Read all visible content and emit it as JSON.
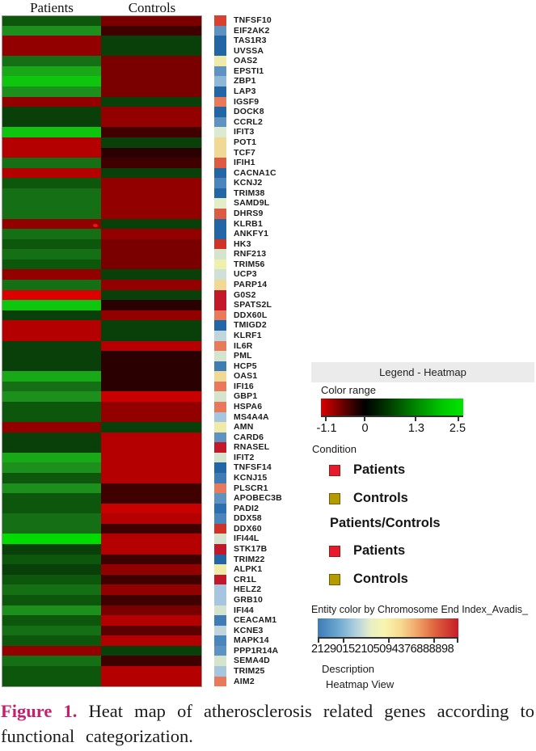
{
  "figure": {
    "columns": [
      "Patients",
      "Controls"
    ],
    "caption": {
      "label": "Figure 1.",
      "label_color": "#c51f6d",
      "text": "Heat map of atherosclerosis related genes according to functional categorization."
    }
  },
  "heatmap": {
    "rows": [
      {
        "g": "TNFSF10",
        "p": "#0d570d",
        "c": "#7a0000",
        "k": "#d8402f"
      },
      {
        "g": "EIF2AK2",
        "p": "#1d8f1d",
        "c": "#400000",
        "k": "#5e93c1"
      },
      {
        "g": "TAS1R3",
        "p": "#930000",
        "c": "#093f09",
        "k": "#2266a5"
      },
      {
        "g": "UVSSA",
        "p": "#930000",
        "c": "#093f09",
        "k": "#2266a5"
      },
      {
        "g": "OAS2",
        "p": "#157015",
        "c": "#7a0000",
        "k": "#f0eaa8"
      },
      {
        "g": "EPSTI1",
        "p": "#18a818",
        "c": "#7a0000",
        "k": "#5e93c1"
      },
      {
        "g": "ZBP1",
        "p": "#0fc60f",
        "c": "#7a0000",
        "k": "#8fb8d8"
      },
      {
        "g": "LAP3",
        "p": "#1d8f1d",
        "c": "#7a0000",
        "k": "#2266a5"
      },
      {
        "g": "IGSF9",
        "p": "#930000",
        "c": "#093f09",
        "k": "#e8795a"
      },
      {
        "g": "DOCK8",
        "p": "#093f09",
        "c": "#930000",
        "k": "#2266a5"
      },
      {
        "g": "CCRL2",
        "p": "#093f09",
        "c": "#930000",
        "k": "#5e93c1"
      },
      {
        "g": "IFIT3",
        "p": "#0fc60f",
        "c": "#400000",
        "k": "#dcead0"
      },
      {
        "g": "POT1",
        "p": "#b40000",
        "c": "#093f09",
        "k": "#efd995"
      },
      {
        "g": "TCF7",
        "p": "#b40000",
        "c": "#2b0000",
        "k": "#efd995"
      },
      {
        "g": "IFIH1",
        "p": "#157015",
        "c": "#400000",
        "k": "#dd5b42"
      },
      {
        "g": "CACNA1C",
        "p": "#b40000",
        "c": "#093f09",
        "k": "#2266a5"
      },
      {
        "g": "KCNJ2",
        "p": "#0d570d",
        "c": "#930000",
        "k": "#4a86bb"
      },
      {
        "g": "TRIM38",
        "p": "#157015",
        "c": "#930000",
        "k": "#2266a5"
      },
      {
        "g": "SAMD9L",
        "p": "#157015",
        "c": "#930000",
        "k": "#e3edc8"
      },
      {
        "g": "DHRS9",
        "p": "#157015",
        "c": "#930000",
        "k": "#dd5b42"
      },
      {
        "g": "KLRB1",
        "p": "#930000",
        "c": "#093f09",
        "k": "#2266a5"
      },
      {
        "g": "ANKFY1",
        "p": "#157015",
        "c": "#930000",
        "k": "#2266a5"
      },
      {
        "g": "HK3",
        "p": "#0d570d",
        "c": "#7a0000",
        "k": "#cf3227"
      },
      {
        "g": "RNF213",
        "p": "#157015",
        "c": "#7a0000",
        "k": "#d5e5cd"
      },
      {
        "g": "TRIM56",
        "p": "#0d570d",
        "c": "#7a0000",
        "k": "#eff0b0"
      },
      {
        "g": "UCP3",
        "p": "#930000",
        "c": "#093f09",
        "k": "#cfe0d6"
      },
      {
        "g": "PARP14",
        "p": "#157015",
        "c": "#930000",
        "k": "#efd995"
      },
      {
        "g": "G0S2",
        "p": "#dd0000",
        "c": "#093f09",
        "k": "#c3172a"
      },
      {
        "g": "SPATS2L",
        "p": "#0fc60f",
        "c": "#2b0000",
        "k": "#c3172a"
      },
      {
        "g": "DDX60L",
        "p": "#093f09",
        "c": "#930000",
        "k": "#e8795a"
      },
      {
        "g": "TMIGD2",
        "p": "#b40000",
        "c": "#093f09",
        "k": "#2266a5"
      },
      {
        "g": "KLRF1",
        "p": "#b40000",
        "c": "#093f09",
        "k": "#c2d4dc"
      },
      {
        "g": "IL6R",
        "p": "#093f09",
        "c": "#b40000",
        "k": "#e8795a"
      },
      {
        "g": "PML",
        "p": "#093f09",
        "c": "#2b0000",
        "k": "#d5e5cd"
      },
      {
        "g": "HCP5",
        "p": "#093f09",
        "c": "#2b0000",
        "k": "#3f7cb5"
      },
      {
        "g": "OAS1",
        "p": "#18a818",
        "c": "#2b0000",
        "k": "#efd995"
      },
      {
        "g": "IFI16",
        "p": "#157015",
        "c": "#2b0000",
        "k": "#e8795a"
      },
      {
        "g": "GBP1",
        "p": "#1d8f1d",
        "c": "#c80000",
        "k": "#d5e5cd"
      },
      {
        "g": "HSPA6",
        "p": "#0d570d",
        "c": "#930000",
        "k": "#e8795a"
      },
      {
        "g": "MS4A4A",
        "p": "#0d570d",
        "c": "#930000",
        "k": "#a5c6de"
      },
      {
        "g": "AMN",
        "p": "#930000",
        "c": "#093f09",
        "k": "#f0eaa8"
      },
      {
        "g": "CARD6",
        "p": "#093f09",
        "c": "#b40000",
        "k": "#5e93c1"
      },
      {
        "g": "RNASEL",
        "p": "#093f09",
        "c": "#b40000",
        "k": "#c3172a"
      },
      {
        "g": "IFIT2",
        "p": "#18a818",
        "c": "#b40000",
        "k": "#d5e5cd"
      },
      {
        "g": "TNFSF14",
        "p": "#1d8f1d",
        "c": "#b40000",
        "k": "#2266a5"
      },
      {
        "g": "KCNJ15",
        "p": "#0d570d",
        "c": "#b40000",
        "k": "#3f7cb5"
      },
      {
        "g": "PLSCR1",
        "p": "#1d8f1d",
        "c": "#400000",
        "k": "#e8795a"
      },
      {
        "g": "APOBEC3B",
        "p": "#0d570d",
        "c": "#400000",
        "k": "#5e93c1"
      },
      {
        "g": "PADI2",
        "p": "#0d570d",
        "c": "#c80000",
        "k": "#2e6fae"
      },
      {
        "g": "DDX58",
        "p": "#157015",
        "c": "#b40000",
        "k": "#4a86bb"
      },
      {
        "g": "DDX60",
        "p": "#157015",
        "c": "#400000",
        "k": "#cf3227"
      },
      {
        "g": "IFI44L",
        "p": "#00dc00",
        "c": "#b40000",
        "k": "#d5e5cd"
      },
      {
        "g": "STK17B",
        "p": "#093f09",
        "c": "#b40000",
        "k": "#c3172a"
      },
      {
        "g": "TRIM22",
        "p": "#0d570d",
        "c": "#400000",
        "k": "#2266a5"
      },
      {
        "g": "ALPK1",
        "p": "#093f09",
        "c": "#930000",
        "k": "#f0eaa8"
      },
      {
        "g": "CR1L",
        "p": "#0d570d",
        "c": "#400000",
        "k": "#c3172a"
      },
      {
        "g": "HELZ2",
        "p": "#157015",
        "c": "#930000",
        "k": "#a5c6de"
      },
      {
        "g": "GRB10",
        "p": "#0d570d",
        "c": "#400000",
        "k": "#a5c6de"
      },
      {
        "g": "IFI44",
        "p": "#1d8f1d",
        "c": "#7a0000",
        "k": "#d5e5cd"
      },
      {
        "g": "CEACAM1",
        "p": "#0d570d",
        "c": "#b40000",
        "k": "#3f7cb5"
      },
      {
        "g": "KCNE3",
        "p": "#157015",
        "c": "#5c0000",
        "k": "#c2d4dc"
      },
      {
        "g": "MAPK14",
        "p": "#0d570d",
        "c": "#b40000",
        "k": "#4a86bb"
      },
      {
        "g": "PPP1R14A",
        "p": "#930000",
        "c": "#093f09",
        "k": "#5e93c1"
      },
      {
        "g": "SEMA4D",
        "p": "#157015",
        "c": "#400000",
        "k": "#d5e5cd"
      },
      {
        "g": "TRIM25",
        "p": "#0d570d",
        "c": "#b40000",
        "k": "#a5c6de"
      },
      {
        "g": "AIM2",
        "p": "#0d570d",
        "c": "#b40000",
        "k": "#e8795a"
      }
    ]
  },
  "legend": {
    "title": "Legend - Heatmap",
    "color_range": {
      "label": "Color range",
      "ticks": [
        "-1.1",
        "0",
        "1.3",
        "2.5"
      ],
      "gradient_ends": [
        "#dd0000",
        "#000000",
        "#00e400"
      ]
    },
    "condition": {
      "label": "Condition",
      "items": [
        {
          "label": "Patients",
          "color": "#e8192c"
        },
        {
          "label": "Controls",
          "color": "#b39b00"
        }
      ]
    },
    "ratio": {
      "label": "Patients/Controls",
      "items": [
        {
          "label": "Patients",
          "color": "#e8192c"
        },
        {
          "label": "Controls",
          "color": "#b39b00"
        }
      ]
    },
    "entity": {
      "label": "Entity color by Chromosome End Index_Avadis_",
      "tick_text": "21290152105094376888898"
    },
    "description_label": "Description",
    "view_label": "Heatmap View"
  },
  "chart_data": {
    "type": "heatmap",
    "title": "Heat map of atherosclerosis related genes according to functional categorization",
    "categories": [
      "TNFSF10",
      "EIF2AK2",
      "TAS1R3",
      "UVSSA",
      "OAS2",
      "EPSTI1",
      "ZBP1",
      "LAP3",
      "IGSF9",
      "DOCK8",
      "CCRL2",
      "IFIT3",
      "POT1",
      "TCF7",
      "IFIH1",
      "CACNA1C",
      "KCNJ2",
      "TRIM38",
      "SAMD9L",
      "DHRS9",
      "KLRB1",
      "ANKFY1",
      "HK3",
      "RNF213",
      "TRIM56",
      "UCP3",
      "PARP14",
      "G0S2",
      "SPATS2L",
      "DDX60L",
      "TMIGD2",
      "KLRF1",
      "IL6R",
      "PML",
      "HCP5",
      "OAS1",
      "IFI16",
      "GBP1",
      "HSPA6",
      "MS4A4A",
      "AMN",
      "CARD6",
      "RNASEL",
      "IFIT2",
      "TNFSF14",
      "KCNJ15",
      "PLSCR1",
      "APOBEC3B",
      "PADI2",
      "DDX58",
      "DDX60",
      "IFI44L",
      "STK17B",
      "TRIM22",
      "ALPK1",
      "CR1L",
      "HELZ2",
      "GRB10",
      "IFI44",
      "CEACAM1",
      "KCNE3",
      "MAPK14",
      "PPP1R14A",
      "SEMA4D",
      "TRIM25",
      "AIM2"
    ],
    "series": [
      {
        "name": "Patients",
        "values": [
          1.0,
          1.6,
          -0.75,
          -0.75,
          1.3,
          1.9,
          2.2,
          1.6,
          -0.75,
          0.7,
          0.7,
          2.2,
          -0.9,
          -0.9,
          1.3,
          -0.9,
          1.0,
          1.3,
          1.3,
          1.3,
          -0.75,
          1.3,
          1.0,
          1.3,
          1.0,
          -0.75,
          1.3,
          -1.1,
          2.2,
          0.7,
          -0.9,
          -0.9,
          0.7,
          0.7,
          0.7,
          1.9,
          1.3,
          1.6,
          1.0,
          1.0,
          -0.75,
          0.7,
          0.7,
          1.9,
          1.6,
          1.0,
          1.6,
          1.0,
          1.0,
          1.3,
          1.3,
          2.5,
          0.7,
          1.0,
          0.7,
          1.0,
          1.3,
          1.0,
          1.6,
          1.0,
          1.3,
          1.0,
          -0.75,
          1.3,
          1.0,
          1.0
        ]
      },
      {
        "name": "Controls",
        "values": [
          -0.6,
          -0.35,
          0.7,
          0.7,
          -0.6,
          -0.6,
          -0.6,
          -0.6,
          0.7,
          -0.75,
          -0.75,
          -0.35,
          0.7,
          -0.2,
          -0.35,
          0.7,
          -0.75,
          -0.75,
          -0.75,
          -0.75,
          0.7,
          -0.75,
          -0.6,
          -0.6,
          -0.6,
          0.7,
          -0.75,
          0.7,
          -0.2,
          -0.75,
          0.7,
          0.7,
          -0.9,
          -0.2,
          -0.2,
          -0.2,
          -0.2,
          -1.1,
          -0.75,
          -0.75,
          0.7,
          -0.9,
          -0.9,
          -0.9,
          -0.9,
          -0.9,
          -0.35,
          -0.35,
          -1.1,
          -0.9,
          -0.35,
          -0.9,
          -0.9,
          -0.35,
          -0.75,
          -0.35,
          -0.75,
          -0.35,
          -0.6,
          -0.9,
          -0.5,
          -0.9,
          0.7,
          -0.35,
          -0.9,
          -0.9
        ]
      }
    ],
    "value_scale": {
      "domain": [
        -1.1,
        2.5
      ],
      "tick_labels": [
        "-1.1",
        "0",
        "1.3",
        "2.5"
      ],
      "negative_color": "red",
      "zero_color": "black",
      "positive_color": "green"
    },
    "legend_position": "right"
  }
}
